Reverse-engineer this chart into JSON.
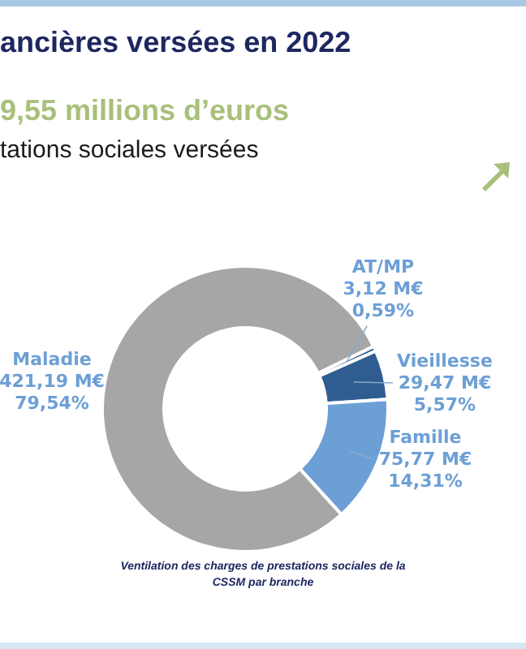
{
  "chart_data": {
    "type": "donut",
    "title": "ancières versées en 2022",
    "subtitle": "9,55 millions d’euros",
    "xlabel": "tations sociales versées",
    "categories": [
      "AT/MP",
      "Vieillesse",
      "Famille",
      "Maladie"
    ],
    "values": [
      3.12,
      29.47,
      75.77,
      421.19
    ],
    "colors": [
      "#2f5d8f",
      "#2f5d8f",
      "#6c9fd6",
      "#a6a6a6"
    ],
    "value_labels": [
      "3,12 M€\n0,59%",
      "29,47 M€\n5,57%",
      "75,77 M€\n14,31%",
      "421,19 M€\n79,54%"
    ],
    "annotations": [
      "Ventilation des charges de prestations sociales de la CSSM par branche"
    ]
  }
}
